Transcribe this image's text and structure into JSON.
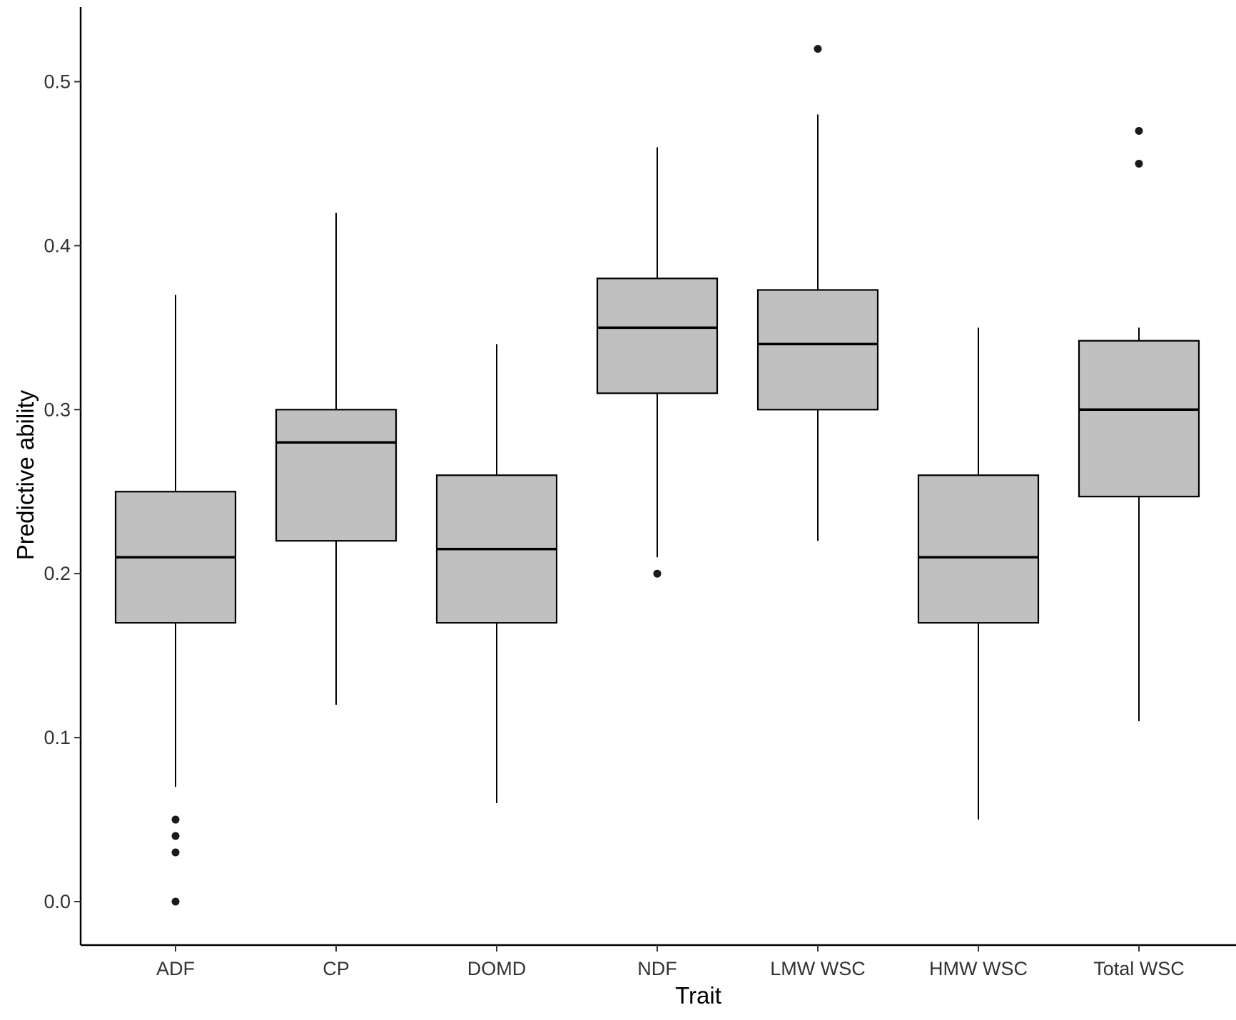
{
  "chart_data": {
    "type": "box",
    "title": "",
    "xlabel": "Trait",
    "ylabel": "Predictive ability",
    "ylim": [
      -0.025,
      0.55
    ],
    "yticks": [
      0.0,
      0.1,
      0.2,
      0.3,
      0.4,
      0.5
    ],
    "ytick_labels": [
      "0.0",
      "0.1",
      "0.2",
      "0.3",
      "0.4",
      "0.5"
    ],
    "grid": false,
    "legend": "none",
    "box_fill": "#c0c0c0",
    "line_color": "#000000",
    "categories": [
      "ADF",
      "CP",
      "DOMD",
      "NDF",
      "LMW WSC",
      "HMW WSC",
      "Total WSC"
    ],
    "boxes": [
      {
        "category": "ADF",
        "whisker_low": 0.07,
        "q1": 0.17,
        "median": 0.21,
        "q3": 0.25,
        "whisker_high": 0.37,
        "outliers": [
          0.05,
          0.04,
          0.03,
          0.0
        ]
      },
      {
        "category": "CP",
        "whisker_low": 0.12,
        "q1": 0.22,
        "median": 0.28,
        "q3": 0.3,
        "whisker_high": 0.42,
        "outliers": []
      },
      {
        "category": "DOMD",
        "whisker_low": 0.06,
        "q1": 0.17,
        "median": 0.215,
        "q3": 0.26,
        "whisker_high": 0.34,
        "outliers": []
      },
      {
        "category": "NDF",
        "whisker_low": 0.21,
        "q1": 0.31,
        "median": 0.35,
        "q3": 0.38,
        "whisker_high": 0.46,
        "outliers": [
          0.2
        ]
      },
      {
        "category": "LMW WSC",
        "whisker_low": 0.22,
        "q1": 0.3,
        "median": 0.34,
        "q3": 0.373,
        "whisker_high": 0.48,
        "outliers": [
          0.52
        ]
      },
      {
        "category": "HMW WSC",
        "whisker_low": 0.05,
        "q1": 0.17,
        "median": 0.21,
        "q3": 0.26,
        "whisker_high": 0.35,
        "outliers": []
      },
      {
        "category": "Total WSC",
        "whisker_low": 0.11,
        "q1": 0.247,
        "median": 0.3,
        "q3": 0.342,
        "whisker_high": 0.35,
        "outliers": [
          0.45,
          0.47
        ]
      }
    ]
  }
}
